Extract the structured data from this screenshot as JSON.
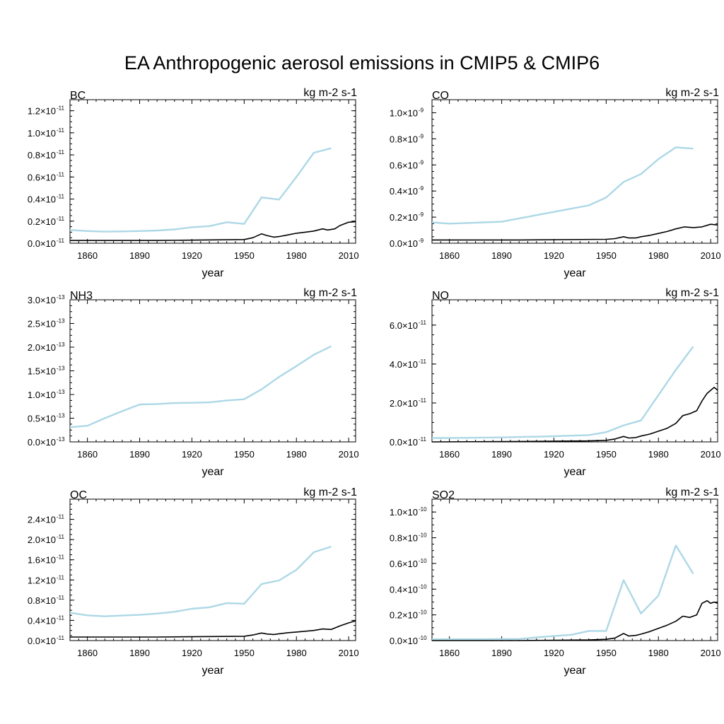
{
  "title": "EA Anthropogenic aerosol emissions in CMIP5 & CMIP6",
  "colors": {
    "cmip5": "#add8e6",
    "cmip6": "#000000",
    "axis": "#000000"
  },
  "chart_data": [
    {
      "type": "line",
      "panel": "BC",
      "unit": "kg m-2 s-1",
      "xlabel": "year",
      "xlim": [
        1850,
        2014
      ],
      "ylim": [
        0,
        1.3
      ],
      "x_ticks": [
        "1860",
        "1890",
        "1920",
        "1950",
        "1980",
        "2010"
      ],
      "y_ticks": [
        0.0,
        0.2,
        0.4,
        0.6,
        0.8,
        1.0,
        1.2
      ],
      "y_tick_labels": [
        "0.0×10",
        "0.2×10",
        "0.4×10",
        "0.6×10",
        "0.8×10",
        "1.0×10",
        "1.2×10"
      ],
      "y_exponent": "-11",
      "series": [
        {
          "style": "light-blue",
          "x": [
            1850,
            1860,
            1870,
            1880,
            1890,
            1900,
            1910,
            1920,
            1930,
            1940,
            1950,
            1960,
            1970,
            1980,
            1990,
            2000
          ],
          "y": [
            0.12,
            0.11,
            0.105,
            0.107,
            0.11,
            0.115,
            0.125,
            0.145,
            0.155,
            0.19,
            0.175,
            0.415,
            0.395,
            0.6,
            0.82,
            0.86
          ]
        },
        {
          "style": "black",
          "x": [
            1850,
            1900,
            1950,
            1955,
            1960,
            1963,
            1967,
            1970,
            1975,
            1980,
            1985,
            1990,
            1995,
            1998,
            2002,
            2005,
            2010,
            2014
          ],
          "y": [
            0.025,
            0.025,
            0.033,
            0.05,
            0.085,
            0.07,
            0.055,
            0.06,
            0.075,
            0.09,
            0.1,
            0.11,
            0.13,
            0.12,
            0.13,
            0.16,
            0.19,
            0.195
          ]
        }
      ]
    },
    {
      "type": "line",
      "panel": "CO",
      "unit": "kg m-2 s-1",
      "xlabel": "year",
      "xlim": [
        1850,
        2014
      ],
      "ylim": [
        0,
        1.1
      ],
      "x_ticks": [
        "1860",
        "1890",
        "1920",
        "1950",
        "1980",
        "2010"
      ],
      "y_ticks": [
        0.0,
        0.2,
        0.4,
        0.6,
        0.8,
        1.0
      ],
      "y_tick_labels": [
        "0.0×10",
        "0.2×10",
        "0.4×10",
        "0.6×10",
        "0.8×10",
        "1.0×10"
      ],
      "y_exponent": "-9",
      "series": [
        {
          "style": "light-blue",
          "x": [
            1850,
            1860,
            1870,
            1880,
            1890,
            1900,
            1910,
            1920,
            1930,
            1940,
            1950,
            1960,
            1970,
            1980,
            1990,
            2000
          ],
          "y": [
            0.16,
            0.15,
            0.155,
            0.16,
            0.165,
            0.19,
            0.215,
            0.24,
            0.265,
            0.29,
            0.35,
            0.47,
            0.53,
            0.645,
            0.735,
            0.725
          ]
        },
        {
          "style": "black",
          "x": [
            1850,
            1900,
            1950,
            1955,
            1960,
            1963,
            1967,
            1970,
            1975,
            1980,
            1985,
            1990,
            1995,
            2000,
            2005,
            2010,
            2014
          ],
          "y": [
            0.025,
            0.025,
            0.03,
            0.035,
            0.05,
            0.04,
            0.04,
            0.05,
            0.06,
            0.075,
            0.09,
            0.11,
            0.125,
            0.12,
            0.125,
            0.145,
            0.14
          ]
        }
      ]
    },
    {
      "type": "line",
      "panel": "NH3",
      "unit": "kg m-2 s-1",
      "xlabel": "year",
      "xlim": [
        1850,
        2014
      ],
      "ylim": [
        0,
        3.0
      ],
      "x_ticks": [
        "1860",
        "1890",
        "1920",
        "1950",
        "1980",
        "2010"
      ],
      "y_ticks": [
        0.0,
        0.5,
        1.0,
        1.5,
        2.0,
        2.5,
        3.0
      ],
      "y_tick_labels": [
        "0.0×10",
        "0.5×10",
        "1.0×10",
        "1.5×10",
        "2.0×10",
        "2.5×10",
        "3.0×10"
      ],
      "y_exponent": "-13",
      "series": [
        {
          "style": "light-blue",
          "x": [
            1850,
            1860,
            1870,
            1880,
            1890,
            1900,
            1910,
            1920,
            1930,
            1940,
            1950,
            1960,
            1970,
            1980,
            1990,
            2000
          ],
          "y": [
            0.31,
            0.34,
            0.5,
            0.65,
            0.79,
            0.8,
            0.82,
            0.825,
            0.835,
            0.875,
            0.9,
            1.11,
            1.37,
            1.6,
            1.84,
            2.02
          ]
        }
      ]
    },
    {
      "type": "line",
      "panel": "NO",
      "unit": "kg m-2 s-1",
      "xlabel": "year",
      "xlim": [
        1850,
        2014
      ],
      "ylim": [
        0,
        7.3
      ],
      "x_ticks": [
        "1860",
        "1890",
        "1920",
        "1950",
        "1980",
        "2010"
      ],
      "y_ticks": [
        0.0,
        2.0,
        4.0,
        6.0
      ],
      "y_tick_labels": [
        "0.0×10",
        "2.0×10",
        "4.0×10",
        "6.0×10"
      ],
      "y_exponent": "-11",
      "series": [
        {
          "style": "light-blue",
          "x": [
            1850,
            1860,
            1870,
            1880,
            1890,
            1900,
            1910,
            1920,
            1930,
            1940,
            1950,
            1960,
            1970,
            1980,
            1990,
            2000
          ],
          "y": [
            0.2,
            0.2,
            0.21,
            0.22,
            0.23,
            0.25,
            0.27,
            0.29,
            0.32,
            0.35,
            0.5,
            0.85,
            1.1,
            2.4,
            3.7,
            4.9
          ]
        },
        {
          "style": "black",
          "x": [
            1850,
            1900,
            1940,
            1950,
            1955,
            1960,
            1963,
            1967,
            1970,
            1975,
            1980,
            1985,
            1990,
            1994,
            1998,
            2002,
            2005,
            2008,
            2012,
            2014
          ],
          "y": [
            0.0,
            0.02,
            0.05,
            0.08,
            0.15,
            0.28,
            0.2,
            0.22,
            0.3,
            0.4,
            0.55,
            0.7,
            0.95,
            1.35,
            1.45,
            1.6,
            2.1,
            2.5,
            2.8,
            2.65
          ]
        }
      ]
    },
    {
      "type": "line",
      "panel": "OC",
      "unit": "kg m-2 s-1",
      "xlabel": "year",
      "xlim": [
        1850,
        2014
      ],
      "ylim": [
        0,
        2.8
      ],
      "x_ticks": [
        "1860",
        "1890",
        "1920",
        "1950",
        "1980",
        "2010"
      ],
      "y_ticks": [
        0.0,
        0.4,
        0.8,
        1.2,
        1.6,
        2.0,
        2.4
      ],
      "y_tick_labels": [
        "0.0×10",
        "0.4×10",
        "0.8×10",
        "1.2×10",
        "1.6×10",
        "2.0×10",
        "2.4×10"
      ],
      "y_exponent": "-11",
      "series": [
        {
          "style": "light-blue",
          "x": [
            1850,
            1860,
            1870,
            1880,
            1890,
            1900,
            1910,
            1920,
            1930,
            1940,
            1950,
            1960,
            1970,
            1980,
            1990,
            2000
          ],
          "y": [
            0.55,
            0.5,
            0.48,
            0.495,
            0.51,
            0.535,
            0.57,
            0.63,
            0.66,
            0.74,
            0.73,
            1.12,
            1.19,
            1.4,
            1.75,
            1.86
          ]
        },
        {
          "style": "black",
          "x": [
            1850,
            1900,
            1950,
            1955,
            1960,
            1963,
            1967,
            1970,
            1975,
            1980,
            1985,
            1990,
            1995,
            2000,
            2005,
            2010,
            2014
          ],
          "y": [
            0.07,
            0.07,
            0.085,
            0.11,
            0.15,
            0.13,
            0.12,
            0.135,
            0.155,
            0.17,
            0.185,
            0.2,
            0.23,
            0.22,
            0.29,
            0.35,
            0.39
          ]
        }
      ]
    },
    {
      "type": "line",
      "panel": "SO2",
      "unit": "kg m-2 s-1",
      "xlabel": "year",
      "xlim": [
        1850,
        2014
      ],
      "ylim": [
        0,
        1.1
      ],
      "x_ticks": [
        "1860",
        "1890",
        "1920",
        "1950",
        "1980",
        "2010"
      ],
      "y_ticks": [
        0.0,
        0.2,
        0.4,
        0.6,
        0.8,
        1.0
      ],
      "y_tick_labels": [
        "0.0×10",
        "0.2×10",
        "0.4×10",
        "0.6×10",
        "0.8×10",
        "1.0×10"
      ],
      "y_exponent": "-10",
      "series": [
        {
          "style": "light-blue",
          "x": [
            1850,
            1860,
            1870,
            1880,
            1890,
            1900,
            1910,
            1920,
            1930,
            1940,
            1950,
            1960,
            1970,
            1980,
            1990,
            2000
          ],
          "y": [
            0.01,
            0.01,
            0.01,
            0.01,
            0.012,
            0.012,
            0.025,
            0.035,
            0.045,
            0.075,
            0.075,
            0.47,
            0.21,
            0.35,
            0.74,
            0.52
          ]
        },
        {
          "style": "black",
          "x": [
            1850,
            1900,
            1940,
            1950,
            1955,
            1960,
            1963,
            1967,
            1970,
            1975,
            1980,
            1985,
            1990,
            1994,
            1998,
            2002,
            2005,
            2008,
            2010,
            2012,
            2014
          ],
          "y": [
            0.0,
            0.0,
            0.005,
            0.01,
            0.02,
            0.055,
            0.035,
            0.04,
            0.05,
            0.07,
            0.095,
            0.12,
            0.15,
            0.19,
            0.18,
            0.2,
            0.29,
            0.31,
            0.29,
            0.3,
            0.29
          ]
        }
      ]
    }
  ]
}
